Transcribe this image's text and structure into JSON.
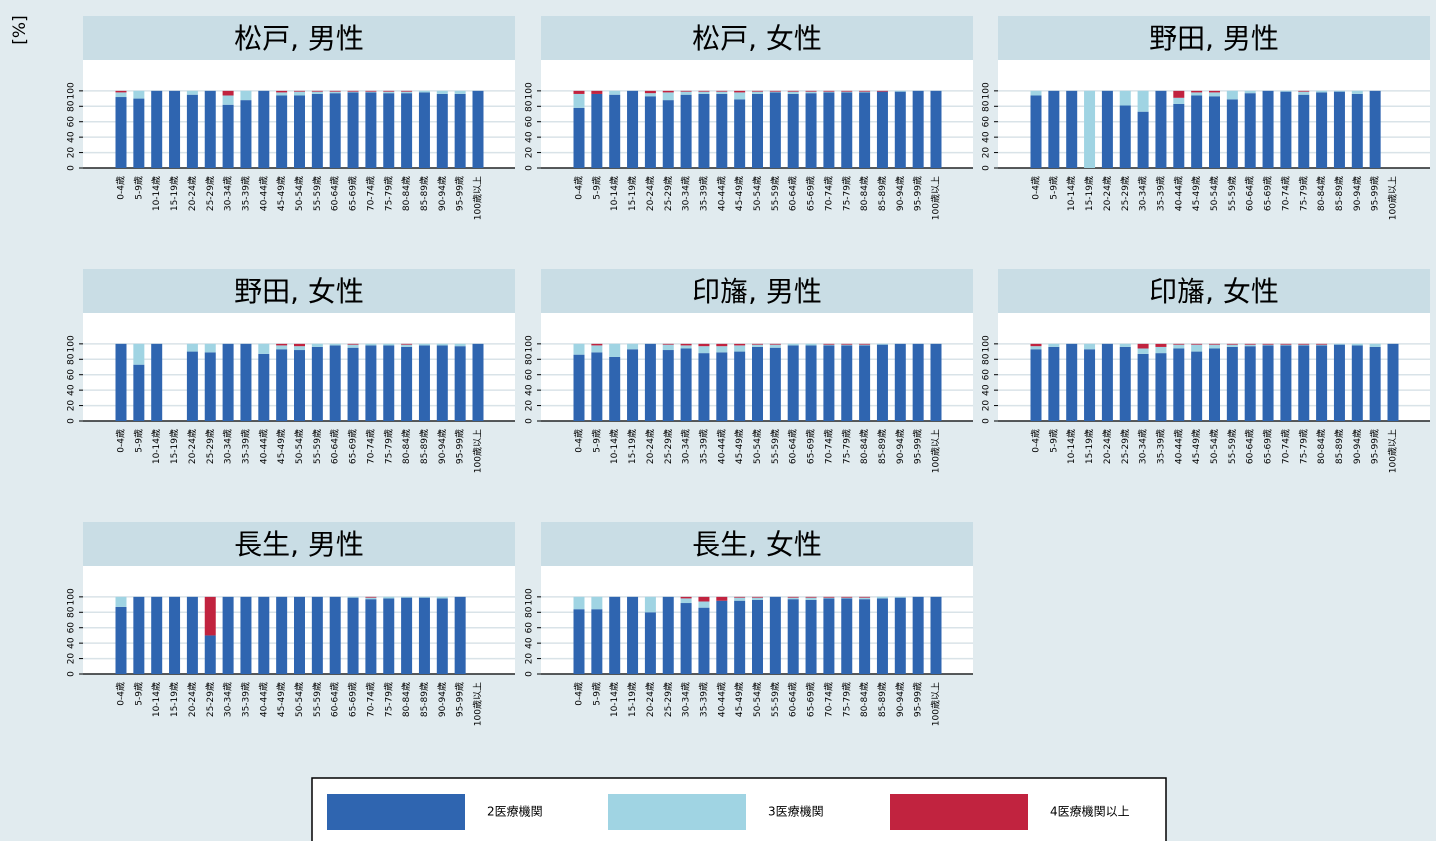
{
  "chart_data": [
    {
      "type": "bar",
      "title": "松戸, 男性",
      "ylabel": "[%]",
      "categories": [
        "0-4歳",
        "5-9歳",
        "10-14歳",
        "15-19歳",
        "20-24歳",
        "25-29歳",
        "30-34歳",
        "35-39歳",
        "40-44歳",
        "45-49歳",
        "50-54歳",
        "55-59歳",
        "60-64歳",
        "65-69歳",
        "70-74歳",
        "75-79歳",
        "80-84歳",
        "85-89歳",
        "90-94歳",
        "95-99歳",
        "100歳以上"
      ],
      "series": [
        {
          "name": "2医療機関",
          "color": "#2f65b0",
          "values": [
            92,
            90,
            100,
            100,
            95,
            100,
            82,
            88,
            100,
            94,
            94,
            96,
            97,
            98,
            98,
            97,
            97,
            98,
            96,
            96,
            100
          ]
        },
        {
          "name": "3医療機関",
          "color": "#a0d4e3",
          "values": [
            6,
            10,
            0,
            0,
            5,
            0,
            12,
            12,
            0,
            4,
            5,
            3,
            2,
            1,
            1,
            2,
            2,
            2,
            4,
            4,
            0
          ]
        },
        {
          "name": "4医療機関以上",
          "color": "#c1233f",
          "values": [
            2,
            0,
            0,
            0,
            0,
            0,
            6,
            0,
            0,
            2,
            1,
            1,
            1,
            1,
            1,
            1,
            1,
            0,
            0,
            0,
            0
          ]
        }
      ],
      "ylim": [
        0,
        140
      ],
      "yticks": [
        0,
        20,
        40,
        60,
        80,
        100
      ],
      "stacked": true,
      "grid": true
    },
    {
      "type": "bar",
      "title": "松戸, 女性",
      "categories": [
        "0-4歳",
        "5-9歳",
        "10-14歳",
        "15-19歳",
        "20-24歳",
        "25-29歳",
        "30-34歳",
        "35-39歳",
        "40-44歳",
        "45-49歳",
        "50-54歳",
        "55-59歳",
        "60-64歳",
        "65-69歳",
        "70-74歳",
        "75-79歳",
        "80-84歳",
        "85-89歳",
        "90-94歳",
        "95-99歳",
        "100歳以上"
      ],
      "series": [
        {
          "name": "2医療機関",
          "color": "#2f65b0",
          "values": [
            78,
            96,
            95,
            100,
            93,
            88,
            95,
            96,
            96,
            89,
            96,
            98,
            96,
            97,
            98,
            98,
            98,
            99,
            99,
            100,
            100
          ]
        },
        {
          "name": "3医療機関",
          "color": "#a0d4e3",
          "values": [
            18,
            0,
            5,
            0,
            4,
            10,
            4,
            3,
            3,
            9,
            3,
            1,
            3,
            2,
            1,
            1,
            1,
            0,
            1,
            0,
            0
          ]
        },
        {
          "name": "4医療機関以上",
          "color": "#c1233f",
          "values": [
            4,
            4,
            0,
            0,
            3,
            2,
            1,
            1,
            1,
            2,
            1,
            1,
            1,
            1,
            1,
            1,
            1,
            1,
            0,
            0,
            0
          ]
        }
      ],
      "ylim": [
        0,
        140
      ],
      "yticks": [
        0,
        20,
        40,
        60,
        80,
        100
      ],
      "stacked": true,
      "grid": true
    },
    {
      "type": "bar",
      "title": "野田, 男性",
      "categories": [
        "0-4歳",
        "5-9歳",
        "10-14歳",
        "15-19歳",
        "20-24歳",
        "25-29歳",
        "30-34歳",
        "35-39歳",
        "40-44歳",
        "45-49歳",
        "50-54歳",
        "55-59歳",
        "60-64歳",
        "65-69歳",
        "70-74歳",
        "75-79歳",
        "80-84歳",
        "85-89歳",
        "90-94歳",
        "95-99歳",
        "100歳以上"
      ],
      "series": [
        {
          "name": "2医療機関",
          "color": "#2f65b0",
          "values": [
            94,
            100,
            100,
            0,
            100,
            81,
            73,
            100,
            83,
            94,
            93,
            89,
            97,
            100,
            99,
            95,
            98,
            99,
            96,
            100,
            0
          ]
        },
        {
          "name": "3医療機関",
          "color": "#a0d4e3",
          "values": [
            6,
            0,
            0,
            100,
            0,
            19,
            27,
            0,
            8,
            4,
            5,
            11,
            3,
            0,
            1,
            4,
            2,
            1,
            4,
            0,
            0
          ]
        },
        {
          "name": "4医療機関以上",
          "color": "#c1233f",
          "values": [
            0,
            0,
            0,
            0,
            0,
            0,
            0,
            0,
            9,
            2,
            2,
            0,
            0,
            0,
            0,
            1,
            0,
            0,
            0,
            0,
            0
          ]
        }
      ],
      "ylim": [
        0,
        140
      ],
      "yticks": [
        0,
        20,
        40,
        60,
        80,
        100
      ],
      "stacked": true,
      "grid": true
    },
    {
      "type": "bar",
      "title": "野田, 女性",
      "categories": [
        "0-4歳",
        "5-9歳",
        "10-14歳",
        "15-19歳",
        "20-24歳",
        "25-29歳",
        "30-34歳",
        "35-39歳",
        "40-44歳",
        "45-49歳",
        "50-54歳",
        "55-59歳",
        "60-64歳",
        "65-69歳",
        "70-74歳",
        "75-79歳",
        "80-84歳",
        "85-89歳",
        "90-94歳",
        "95-99歳",
        "100歳以上"
      ],
      "series": [
        {
          "name": "2医療機関",
          "color": "#2f65b0",
          "values": [
            100,
            73,
            100,
            0,
            90,
            89,
            100,
            100,
            87,
            93,
            92,
            96,
            98,
            95,
            98,
            98,
            96,
            98,
            98,
            97,
            100
          ]
        },
        {
          "name": "3医療機関",
          "color": "#a0d4e3",
          "values": [
            0,
            27,
            0,
            0,
            10,
            11,
            0,
            0,
            13,
            5,
            5,
            4,
            2,
            4,
            2,
            2,
            3,
            2,
            2,
            3,
            0
          ]
        },
        {
          "name": "4医療機関以上",
          "color": "#c1233f",
          "values": [
            0,
            0,
            0,
            0,
            0,
            0,
            0,
            0,
            0,
            2,
            3,
            0,
            0,
            1,
            0,
            0,
            1,
            0,
            0,
            0,
            0
          ]
        }
      ],
      "ylim": [
        0,
        140
      ],
      "yticks": [
        0,
        20,
        40,
        60,
        80,
        100
      ],
      "stacked": true,
      "grid": true
    },
    {
      "type": "bar",
      "title": "印旛, 男性",
      "categories": [
        "0-4歳",
        "5-9歳",
        "10-14歳",
        "15-19歳",
        "20-24歳",
        "25-29歳",
        "30-34歳",
        "35-39歳",
        "40-44歳",
        "45-49歳",
        "50-54歳",
        "55-59歳",
        "60-64歳",
        "65-69歳",
        "70-74歳",
        "75-79歳",
        "80-84歳",
        "85-89歳",
        "90-94歳",
        "95-99歳",
        "100歳以上"
      ],
      "series": [
        {
          "name": "2医療機関",
          "color": "#2f65b0",
          "values": [
            86,
            89,
            83,
            93,
            100,
            92,
            94,
            88,
            89,
            90,
            96,
            95,
            98,
            98,
            98,
            98,
            98,
            99,
            100,
            100,
            100
          ]
        },
        {
          "name": "3医療機関",
          "color": "#a0d4e3",
          "values": [
            14,
            9,
            17,
            7,
            0,
            7,
            4,
            9,
            8,
            8,
            3,
            4,
            2,
            2,
            1,
            1,
            1,
            1,
            0,
            0,
            0
          ]
        },
        {
          "name": "4医療機関以上",
          "color": "#c1233f",
          "values": [
            0,
            2,
            0,
            0,
            0,
            1,
            2,
            3,
            3,
            2,
            1,
            1,
            0,
            0,
            1,
            1,
            1,
            0,
            0,
            0,
            0
          ]
        }
      ],
      "ylim": [
        0,
        140
      ],
      "yticks": [
        0,
        20,
        40,
        60,
        80,
        100
      ],
      "stacked": true,
      "grid": true
    },
    {
      "type": "bar",
      "title": "印旛, 女性",
      "categories": [
        "0-4歳",
        "5-9歳",
        "10-14歳",
        "15-19歳",
        "20-24歳",
        "25-29歳",
        "30-34歳",
        "35-39歳",
        "40-44歳",
        "45-49歳",
        "50-54歳",
        "55-59歳",
        "60-64歳",
        "65-69歳",
        "70-74歳",
        "75-79歳",
        "80-84歳",
        "85-89歳",
        "90-94歳",
        "95-99歳",
        "100歳以上"
      ],
      "series": [
        {
          "name": "2医療機関",
          "color": "#2f65b0",
          "values": [
            93,
            96,
            100,
            93,
            100,
            96,
            87,
            88,
            94,
            90,
            94,
            96,
            97,
            98,
            98,
            98,
            98,
            99,
            98,
            96,
            100
          ]
        },
        {
          "name": "3医療機関",
          "color": "#a0d4e3",
          "values": [
            4,
            4,
            0,
            7,
            0,
            4,
            7,
            8,
            5,
            9,
            5,
            3,
            2,
            1,
            1,
            1,
            1,
            1,
            2,
            4,
            0
          ]
        },
        {
          "name": "4医療機関以上",
          "color": "#c1233f",
          "values": [
            3,
            0,
            0,
            0,
            0,
            0,
            6,
            4,
            1,
            1,
            1,
            1,
            1,
            1,
            1,
            1,
            1,
            0,
            0,
            0,
            0
          ]
        }
      ],
      "ylim": [
        0,
        140
      ],
      "yticks": [
        0,
        20,
        40,
        60,
        80,
        100
      ],
      "stacked": true,
      "grid": true
    },
    {
      "type": "bar",
      "title": "長生, 男性",
      "categories": [
        "0-4歳",
        "5-9歳",
        "10-14歳",
        "15-19歳",
        "20-24歳",
        "25-29歳",
        "30-34歳",
        "35-39歳",
        "40-44歳",
        "45-49歳",
        "50-54歳",
        "55-59歳",
        "60-64歳",
        "65-69歳",
        "70-74歳",
        "75-79歳",
        "80-84歳",
        "85-89歳",
        "90-94歳",
        "95-99歳",
        "100歳以上"
      ],
      "series": [
        {
          "name": "2医療機関",
          "color": "#2f65b0",
          "values": [
            87,
            100,
            100,
            100,
            100,
            50,
            100,
            100,
            100,
            100,
            100,
            100,
            100,
            99,
            97,
            98,
            99,
            99,
            98,
            100,
            0
          ]
        },
        {
          "name": "3医療機関",
          "color": "#a0d4e3",
          "values": [
            13,
            0,
            0,
            0,
            0,
            0,
            0,
            0,
            0,
            0,
            0,
            0,
            0,
            1,
            2,
            2,
            1,
            1,
            2,
            0,
            0
          ]
        },
        {
          "name": "4医療機関以上",
          "color": "#c1233f",
          "values": [
            0,
            0,
            0,
            0,
            0,
            50,
            0,
            0,
            0,
            0,
            0,
            0,
            0,
            0,
            1,
            0,
            0,
            0,
            0,
            0,
            0
          ]
        }
      ],
      "ylim": [
        0,
        140
      ],
      "yticks": [
        0,
        20,
        40,
        60,
        80,
        100
      ],
      "stacked": true,
      "grid": true
    },
    {
      "type": "bar",
      "title": "長生, 女性",
      "categories": [
        "0-4歳",
        "5-9歳",
        "10-14歳",
        "15-19歳",
        "20-24歳",
        "25-29歳",
        "30-34歳",
        "35-39歳",
        "40-44歳",
        "45-49歳",
        "50-54歳",
        "55-59歳",
        "60-64歳",
        "65-69歳",
        "70-74歳",
        "75-79歳",
        "80-84歳",
        "85-89歳",
        "90-94歳",
        "95-99歳",
        "100歳以上"
      ],
      "series": [
        {
          "name": "2医療機関",
          "color": "#2f65b0",
          "values": [
            84,
            84,
            100,
            100,
            80,
            100,
            92,
            86,
            95,
            95,
            96,
            100,
            97,
            96,
            98,
            98,
            97,
            98,
            99,
            100,
            100
          ]
        },
        {
          "name": "3医療機関",
          "color": "#a0d4e3",
          "values": [
            16,
            16,
            0,
            0,
            20,
            0,
            6,
            8,
            0,
            4,
            3,
            0,
            2,
            3,
            1,
            1,
            2,
            2,
            1,
            0,
            0
          ]
        },
        {
          "name": "4医療機関以上",
          "color": "#c1233f",
          "values": [
            0,
            0,
            0,
            0,
            0,
            0,
            2,
            6,
            5,
            1,
            1,
            0,
            1,
            1,
            1,
            1,
            1,
            0,
            0,
            0,
            0
          ]
        }
      ],
      "ylim": [
        0,
        140
      ],
      "yticks": [
        0,
        20,
        40,
        60,
        80,
        100
      ],
      "stacked": true,
      "grid": true
    }
  ]
}
